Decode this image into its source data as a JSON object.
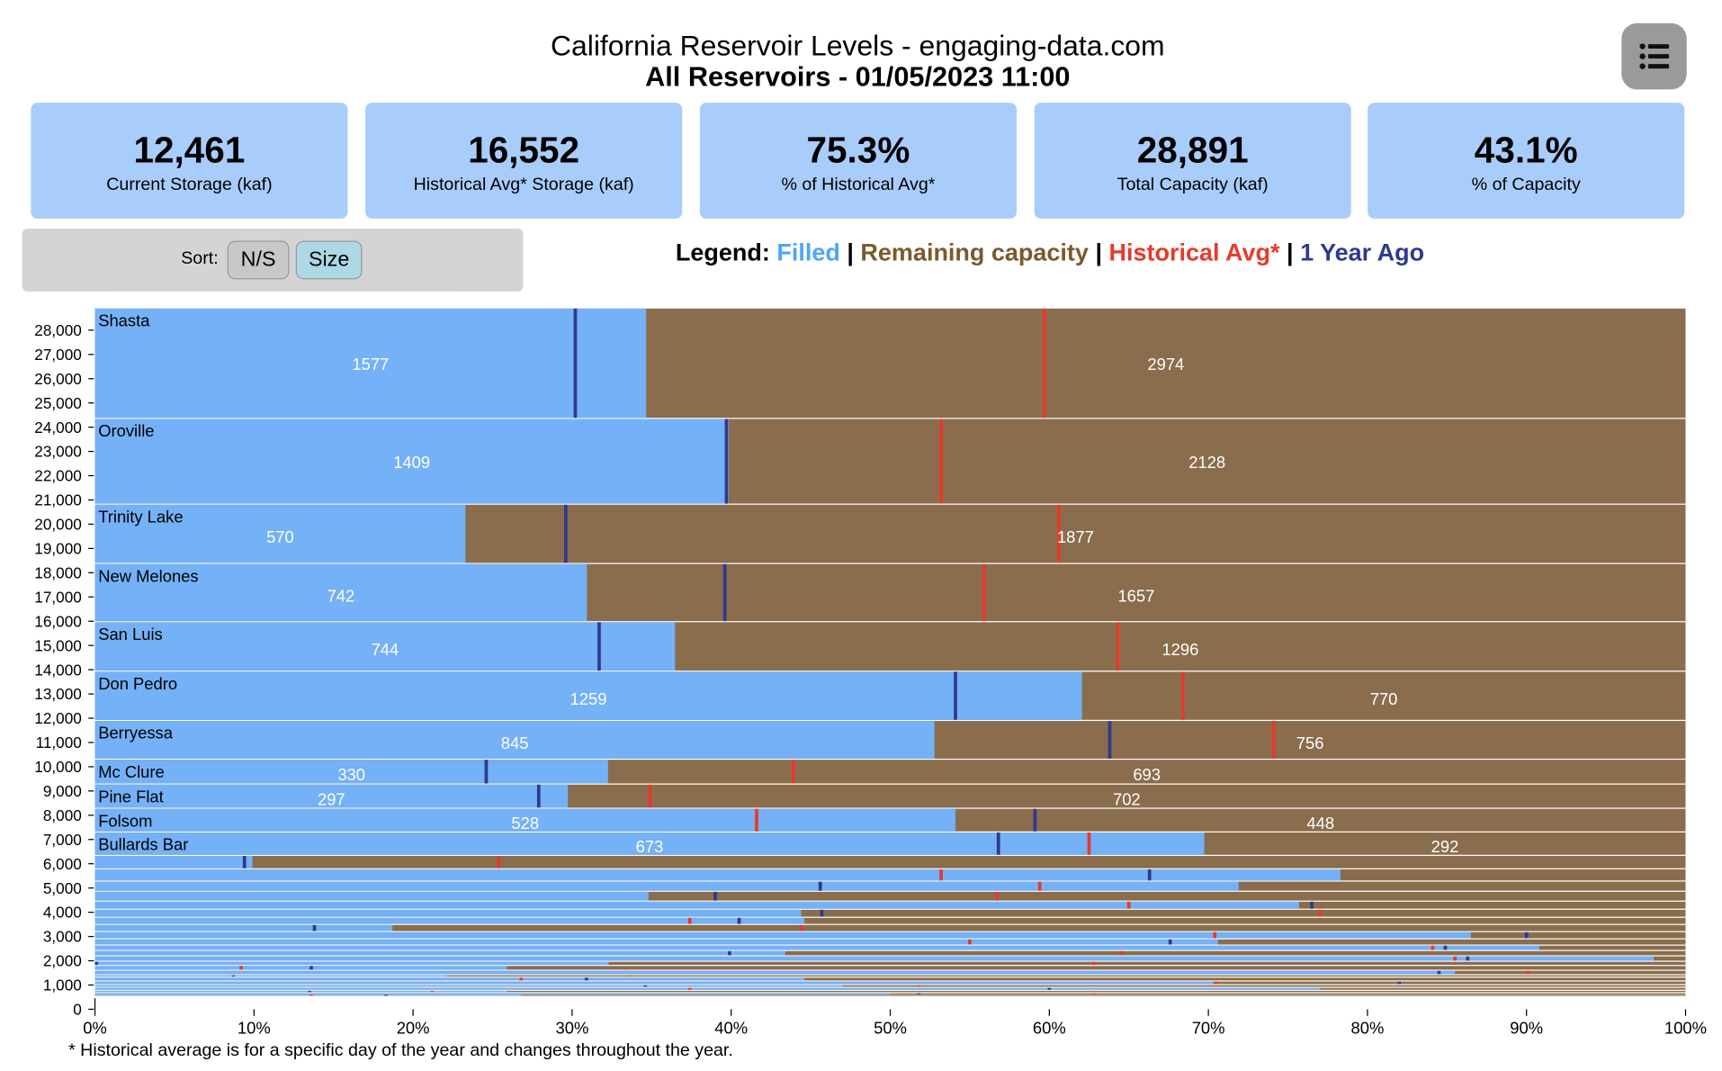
{
  "header": {
    "title": "California Reservoir Levels - engaging-data.com",
    "subtitle": "All Reservoirs - 01/05/2023 11:00",
    "menu_icon": "list-icon"
  },
  "stats": [
    {
      "value": "12,461",
      "label": "Current Storage (kaf)"
    },
    {
      "value": "16,552",
      "label": "Historical Avg* Storage (kaf)"
    },
    {
      "value": "75.3%",
      "label": "% of Historical Avg*"
    },
    {
      "value": "28,891",
      "label": "Total Capacity (kaf)"
    },
    {
      "value": "43.1%",
      "label": "% of Capacity"
    }
  ],
  "sort": {
    "label": "Sort:",
    "options": [
      "N/S",
      "Size"
    ],
    "selected": "Size"
  },
  "legend": {
    "prefix": "Legend:",
    "sep": " | ",
    "filled": "Filled",
    "remaining": "Remaining capacity",
    "hist": "Historical Avg*",
    "year_ago": "1 Year Ago",
    "colors": {
      "filled": "#4ea6f8",
      "remaining": "#7a5a2c",
      "hist": "#e8392a",
      "year_ago": "#2e3a8c"
    }
  },
  "footnote": "* Historical average is for a specific day of the year and changes throughout the year.",
  "chart_data": {
    "type": "bar",
    "subtype": "variable-width stacked horizontal bars (height = capacity)",
    "xlim": [
      0,
      100
    ],
    "ylim": [
      0,
      28891
    ],
    "x_ticks": [
      "0%",
      "10%",
      "20%",
      "30%",
      "40%",
      "50%",
      "60%",
      "70%",
      "80%",
      "90%",
      "100%"
    ],
    "y_ticks": [
      0,
      1000,
      2000,
      3000,
      4000,
      5000,
      6000,
      7000,
      8000,
      9000,
      10000,
      11000,
      12000,
      13000,
      14000,
      15000,
      16000,
      17000,
      18000,
      19000,
      20000,
      21000,
      22000,
      23000,
      24000,
      25000,
      26000,
      27000,
      28000
    ],
    "colors": {
      "filled": "#74b1f7",
      "remaining": "#8a6d4d",
      "hist": "#e8392a",
      "year_ago": "#2e3a8c"
    },
    "reservoirs": [
      {
        "name": "Shasta",
        "capacity": 4551,
        "storage": 1577,
        "remaining": 2974,
        "hist_pct": 59.7,
        "year_ago_pct": 30.2
      },
      {
        "name": "Oroville",
        "capacity": 3537,
        "storage": 1409,
        "remaining": 2128,
        "hist_pct": 53.2,
        "year_ago_pct": 39.7
      },
      {
        "name": "Trinity Lake",
        "capacity": 2447,
        "storage": 570,
        "remaining": 1877,
        "hist_pct": 60.6,
        "year_ago_pct": 29.6
      },
      {
        "name": "New Melones",
        "capacity": 2399,
        "storage": 742,
        "remaining": 1657,
        "hist_pct": 55.9,
        "year_ago_pct": 39.6
      },
      {
        "name": "San Luis",
        "capacity": 2040,
        "storage": 744,
        "remaining": 1296,
        "hist_pct": 64.3,
        "year_ago_pct": 31.7
      },
      {
        "name": "Don Pedro",
        "capacity": 2029,
        "storage": 1259,
        "remaining": 770,
        "hist_pct": 68.4,
        "year_ago_pct": 54.1
      },
      {
        "name": "Berryessa",
        "capacity": 1601,
        "storage": 845,
        "remaining": 756,
        "hist_pct": 74.1,
        "year_ago_pct": 63.8
      },
      {
        "name": "Mc Clure",
        "capacity": 1023,
        "storage": 330,
        "remaining": 693,
        "hist_pct": 43.9,
        "year_ago_pct": 24.6
      },
      {
        "name": "Pine Flat",
        "capacity": 999,
        "storage": 297,
        "remaining": 702,
        "hist_pct": 34.9,
        "year_ago_pct": 27.9
      },
      {
        "name": "Folsom",
        "capacity": 976,
        "storage": 528,
        "remaining": 448,
        "hist_pct": 41.6,
        "year_ago_pct": 59.1
      },
      {
        "name": "Bullards Bar",
        "capacity": 965,
        "storage": 673,
        "remaining": 292,
        "hist_pct": 62.5,
        "year_ago_pct": 56.8
      },
      {
        "capacity": 555,
        "fill_pct": 9.9,
        "hist_pct": 25.4,
        "year_ago_pct": 9.4
      },
      {
        "capacity": 506,
        "fill_pct": 78.3,
        "hist_pct": 53.2,
        "year_ago_pct": 66.3
      },
      {
        "capacity": 420,
        "fill_pct": 71.9,
        "hist_pct": 59.4,
        "year_ago_pct": 45.6
      },
      {
        "capacity": 407,
        "fill_pct": 34.8,
        "hist_pct": 56.7,
        "year_ago_pct": 39.0
      },
      {
        "capacity": 333,
        "fill_pct": 75.7,
        "hist_pct": 65.0,
        "year_ago_pct": 76.5
      },
      {
        "capacity": 333,
        "fill_pct": 44.4,
        "hist_pct": 77.0,
        "year_ago_pct": 45.7
      },
      {
        "capacity": 296,
        "fill_pct": 44.6,
        "hist_pct": 37.4,
        "year_ago_pct": 40.5
      },
      {
        "capacity": 296,
        "fill_pct": 18.7,
        "hist_pct": 44.4,
        "year_ago_pct": 13.8
      },
      {
        "capacity": 296,
        "fill_pct": 86.5,
        "hist_pct": 70.4,
        "year_ago_pct": 90.0
      },
      {
        "capacity": 259,
        "fill_pct": 70.6,
        "hist_pct": 55.0,
        "year_ago_pct": 67.6
      },
      {
        "capacity": 222,
        "fill_pct": 90.8,
        "hist_pct": 84.1,
        "year_ago_pct": 84.9
      },
      {
        "capacity": 222,
        "fill_pct": 43.4,
        "hist_pct": 64.5,
        "year_ago_pct": 39.9
      },
      {
        "capacity": 222,
        "fill_pct": 98.0,
        "hist_pct": 85.5,
        "year_ago_pct": 86.3
      },
      {
        "capacity": 173,
        "fill_pct": 32.3,
        "hist_pct": 62.8,
        "year_ago_pct": 0.1
      },
      {
        "capacity": 198,
        "fill_pct": 25.9,
        "hist_pct": 9.2,
        "year_ago_pct": 13.6
      },
      {
        "capacity": 185,
        "fill_pct": 85.5,
        "hist_pct": 90.1,
        "year_ago_pct": 84.5
      },
      {
        "capacity": 99,
        "fill_pct": 22.1,
        "hist_pct": 33.6,
        "year_ago_pct": 8.7
      },
      {
        "capacity": 160,
        "fill_pct": 44.6,
        "hist_pct": 26.8,
        "year_ago_pct": 30.9
      },
      {
        "capacity": 148,
        "fill_pct": 70.3,
        "hist_pct": 70.5,
        "year_ago_pct": 82.0
      },
      {
        "capacity": 111,
        "fill_pct": 47.0,
        "hist_pct": 51.8,
        "year_ago_pct": 34.6
      },
      {
        "capacity": 123,
        "fill_pct": 77.0,
        "hist_pct": 37.4,
        "year_ago_pct": 60.0
      },
      {
        "capacity": 99,
        "fill_pct": 25.9,
        "hist_pct": 21.2,
        "year_ago_pct": 13.5
      },
      {
        "capacity": 62,
        "fill_pct": 50.0,
        "hist_pct": 62.8,
        "year_ago_pct": 51.8
      },
      {
        "capacity": 49,
        "fill_pct": 26.8,
        "hist_pct": 13.6,
        "year_ago_pct": 18.3
      }
    ]
  }
}
